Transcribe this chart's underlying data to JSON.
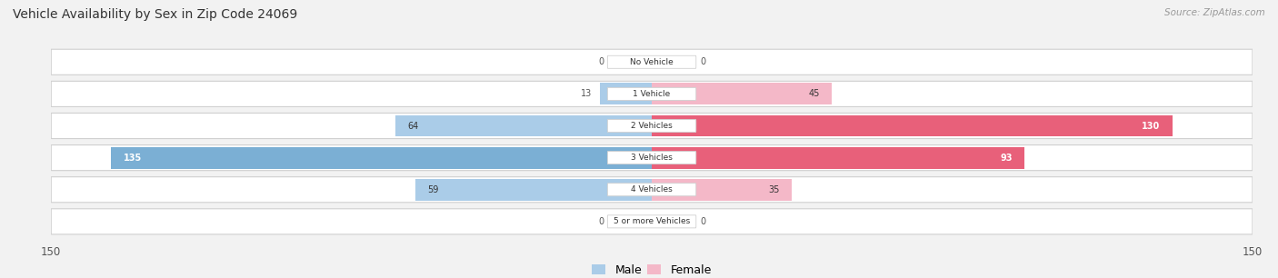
{
  "title": "Vehicle Availability by Sex in Zip Code 24069",
  "source": "Source: ZipAtlas.com",
  "categories": [
    "No Vehicle",
    "1 Vehicle",
    "2 Vehicles",
    "3 Vehicles",
    "4 Vehicles",
    "5 or more Vehicles"
  ],
  "male_values": [
    0,
    13,
    64,
    135,
    59,
    0
  ],
  "female_values": [
    0,
    45,
    130,
    93,
    35,
    0
  ],
  "male_color_large": "#7bafd4",
  "male_color_small": "#aacce8",
  "female_color_large": "#e8607a",
  "female_color_small": "#f4b8c8",
  "xlim": 150,
  "background_color": "#f2f2f2",
  "row_bg_color": "#ffffff",
  "row_outline_color": "#d0d0d0",
  "legend_male": "Male",
  "legend_female": "Female",
  "large_threshold": 80,
  "label_inside_threshold": 25
}
